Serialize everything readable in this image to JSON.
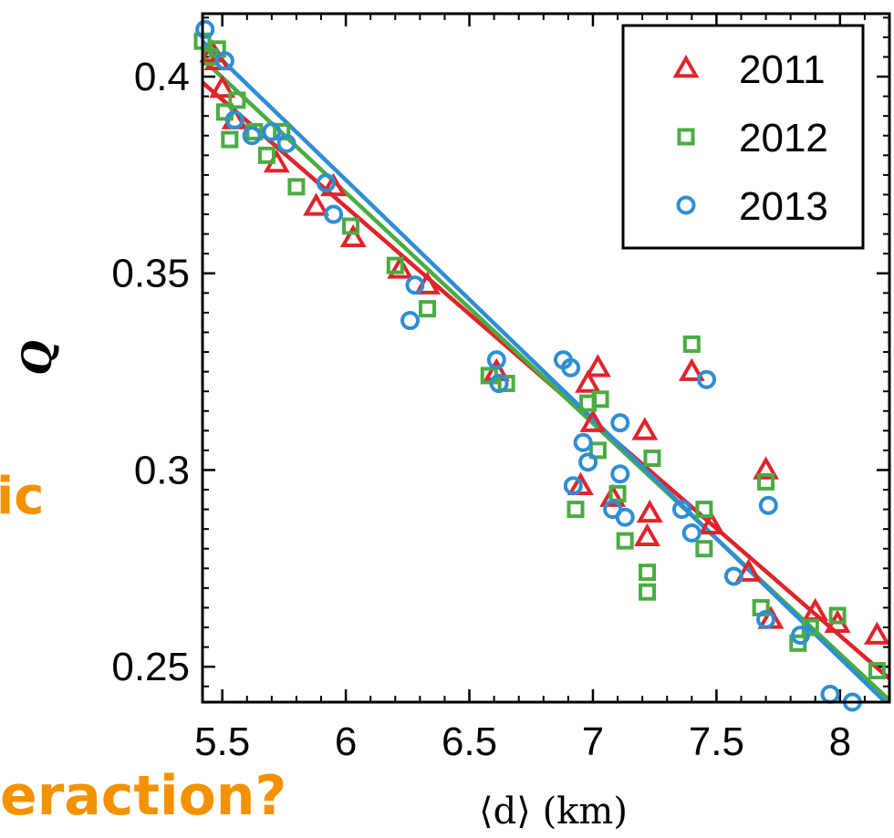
{
  "background_text": {
    "fragment_1": "ic",
    "fragment_2": "eraction?"
  },
  "colors": {
    "s2011": "#e0242b",
    "s2012": "#4aac43",
    "s2013": "#2f8ed2",
    "accent_text": "#f39200"
  },
  "chart_data": {
    "type": "scatter",
    "title": "",
    "xlabel": "⟨d⟩ (km)",
    "ylabel": "Q",
    "xlim": [
      5.42,
      8.2
    ],
    "ylim": [
      0.241,
      0.416
    ],
    "xticks": [
      5.5,
      6,
      6.5,
      7,
      7.5,
      8
    ],
    "xtick_labels": [
      "5.5",
      "6",
      "6.5",
      "7",
      "7.5",
      "8"
    ],
    "yticks": [
      0.25,
      0.3,
      0.35,
      0.4
    ],
    "ytick_labels": [
      "0.25",
      "0.3",
      "0.35",
      "0.4"
    ],
    "legend_position": "top-right",
    "grid": false,
    "series": [
      {
        "name": "2011",
        "marker": "triangle",
        "color": "#e0242b",
        "points": [
          [
            5.46,
            0.406
          ],
          [
            5.48,
            0.404
          ],
          [
            5.5,
            0.397
          ],
          [
            5.55,
            0.389
          ],
          [
            5.72,
            0.378
          ],
          [
            5.88,
            0.367
          ],
          [
            5.95,
            0.372
          ],
          [
            6.03,
            0.359
          ],
          [
            6.22,
            0.351
          ],
          [
            6.33,
            0.347
          ],
          [
            6.61,
            0.325
          ],
          [
            6.95,
            0.296
          ],
          [
            6.98,
            0.322
          ],
          [
            7.0,
            0.312
          ],
          [
            7.02,
            0.326
          ],
          [
            7.08,
            0.293
          ],
          [
            7.21,
            0.31
          ],
          [
            7.22,
            0.283
          ],
          [
            7.23,
            0.289
          ],
          [
            7.4,
            0.325
          ],
          [
            7.48,
            0.286
          ],
          [
            7.63,
            0.274
          ],
          [
            7.7,
            0.3
          ],
          [
            7.72,
            0.262
          ],
          [
            7.9,
            0.264
          ],
          [
            7.99,
            0.261
          ],
          [
            8.15,
            0.258
          ]
        ],
        "fit": [
          [
            5.42,
            0.3985
          ],
          [
            8.2,
            0.247
          ]
        ]
      },
      {
        "name": "2012",
        "marker": "square",
        "color": "#4aac43",
        "points": [
          [
            5.42,
            0.409
          ],
          [
            5.45,
            0.405
          ],
          [
            5.48,
            0.407
          ],
          [
            5.51,
            0.391
          ],
          [
            5.53,
            0.384
          ],
          [
            5.56,
            0.394
          ],
          [
            5.63,
            0.386
          ],
          [
            5.68,
            0.38
          ],
          [
            5.74,
            0.386
          ],
          [
            5.8,
            0.372
          ],
          [
            6.02,
            0.362
          ],
          [
            6.2,
            0.352
          ],
          [
            6.33,
            0.341
          ],
          [
            6.58,
            0.324
          ],
          [
            6.65,
            0.322
          ],
          [
            6.93,
            0.29
          ],
          [
            6.98,
            0.317
          ],
          [
            7.02,
            0.305
          ],
          [
            7.03,
            0.318
          ],
          [
            7.1,
            0.294
          ],
          [
            7.13,
            0.282
          ],
          [
            7.22,
            0.274
          ],
          [
            7.22,
            0.269
          ],
          [
            7.24,
            0.303
          ],
          [
            7.4,
            0.332
          ],
          [
            7.45,
            0.29
          ],
          [
            7.45,
            0.28
          ],
          [
            7.68,
            0.265
          ],
          [
            7.7,
            0.297
          ],
          [
            7.83,
            0.256
          ],
          [
            7.88,
            0.26
          ],
          [
            7.99,
            0.263
          ],
          [
            8.15,
            0.249
          ]
        ],
        "fit": [
          [
            5.42,
            0.4045
          ],
          [
            8.2,
            0.2415
          ]
        ]
      },
      {
        "name": "2013",
        "marker": "circle",
        "color": "#2f8ed2",
        "points": [
          [
            5.43,
            0.412
          ],
          [
            5.51,
            0.404
          ],
          [
            5.55,
            0.389
          ],
          [
            5.62,
            0.385
          ],
          [
            5.7,
            0.386
          ],
          [
            5.76,
            0.383
          ],
          [
            5.92,
            0.373
          ],
          [
            5.95,
            0.365
          ],
          [
            6.26,
            0.338
          ],
          [
            6.28,
            0.347
          ],
          [
            6.61,
            0.328
          ],
          [
            6.62,
            0.322
          ],
          [
            6.88,
            0.328
          ],
          [
            6.91,
            0.326
          ],
          [
            6.92,
            0.296
          ],
          [
            6.96,
            0.307
          ],
          [
            6.98,
            0.302
          ],
          [
            7.08,
            0.29
          ],
          [
            7.11,
            0.312
          ],
          [
            7.11,
            0.299
          ],
          [
            7.13,
            0.288
          ],
          [
            7.36,
            0.29
          ],
          [
            7.4,
            0.284
          ],
          [
            7.46,
            0.323
          ],
          [
            7.57,
            0.273
          ],
          [
            7.7,
            0.262
          ],
          [
            7.71,
            0.291
          ],
          [
            7.84,
            0.258
          ],
          [
            7.96,
            0.243
          ],
          [
            8.05,
            0.241
          ]
        ],
        "fit": [
          [
            5.42,
            0.409
          ],
          [
            8.2,
            0.24
          ]
        ]
      }
    ]
  }
}
